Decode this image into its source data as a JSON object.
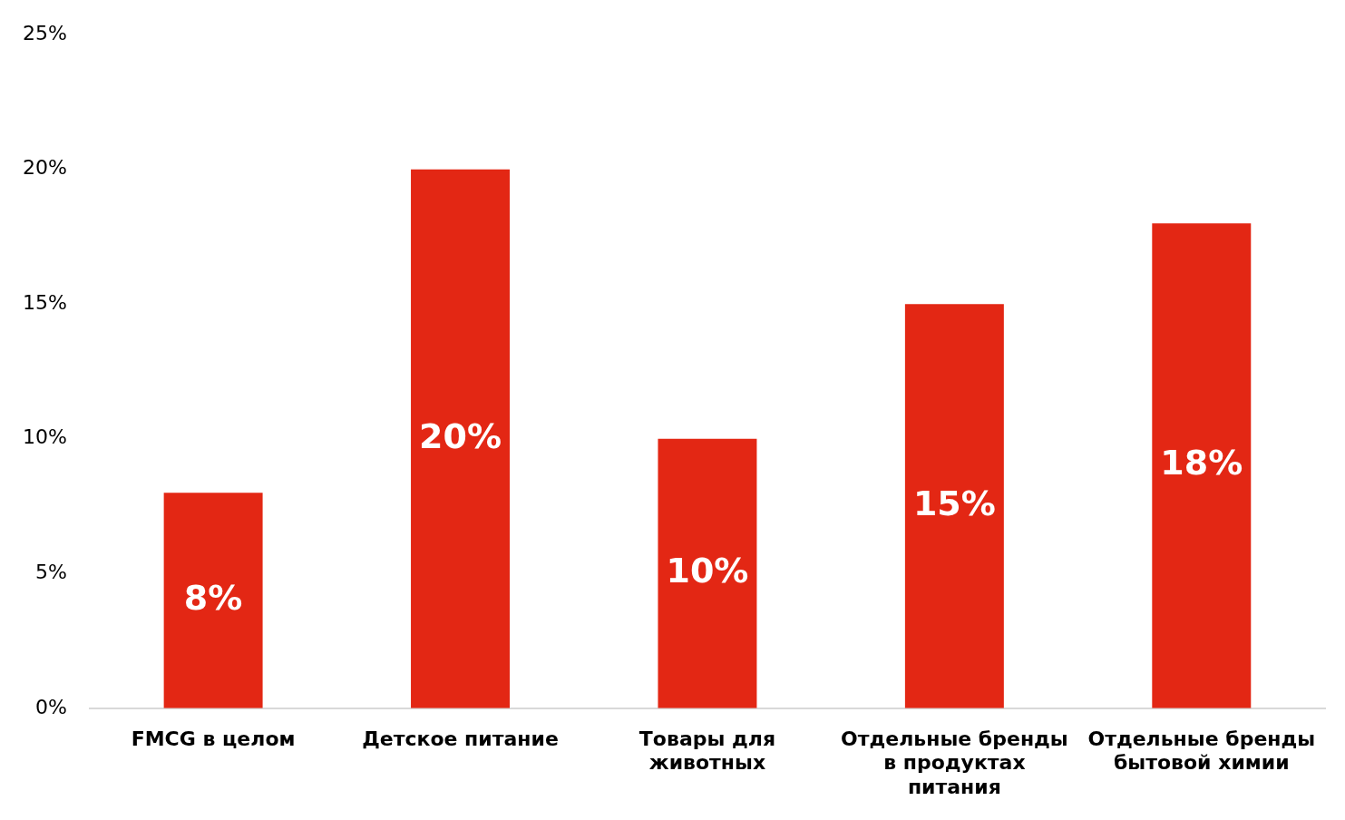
{
  "chart_data": {
    "type": "bar",
    "categories": [
      "FMCG в целом",
      "Детское питание",
      "Товары для животных",
      "Отдельные бренды в продуктах питания",
      "Отдельные бренды бытовой химии"
    ],
    "values": [
      8,
      20,
      10,
      15,
      18
    ],
    "value_labels": [
      "8%",
      "20%",
      "10%",
      "15%",
      "18%"
    ],
    "color": "#e32714",
    "ylim": [
      0,
      25
    ],
    "yticks": [
      {
        "value": 0,
        "label": "0%"
      },
      {
        "value": 5,
        "label": "5%"
      },
      {
        "value": 10,
        "label": "10%"
      },
      {
        "value": 15,
        "label": "15%"
      },
      {
        "value": 20,
        "label": "20%"
      },
      {
        "value": 25,
        "label": "25%"
      }
    ],
    "grid": false,
    "legend": false
  }
}
